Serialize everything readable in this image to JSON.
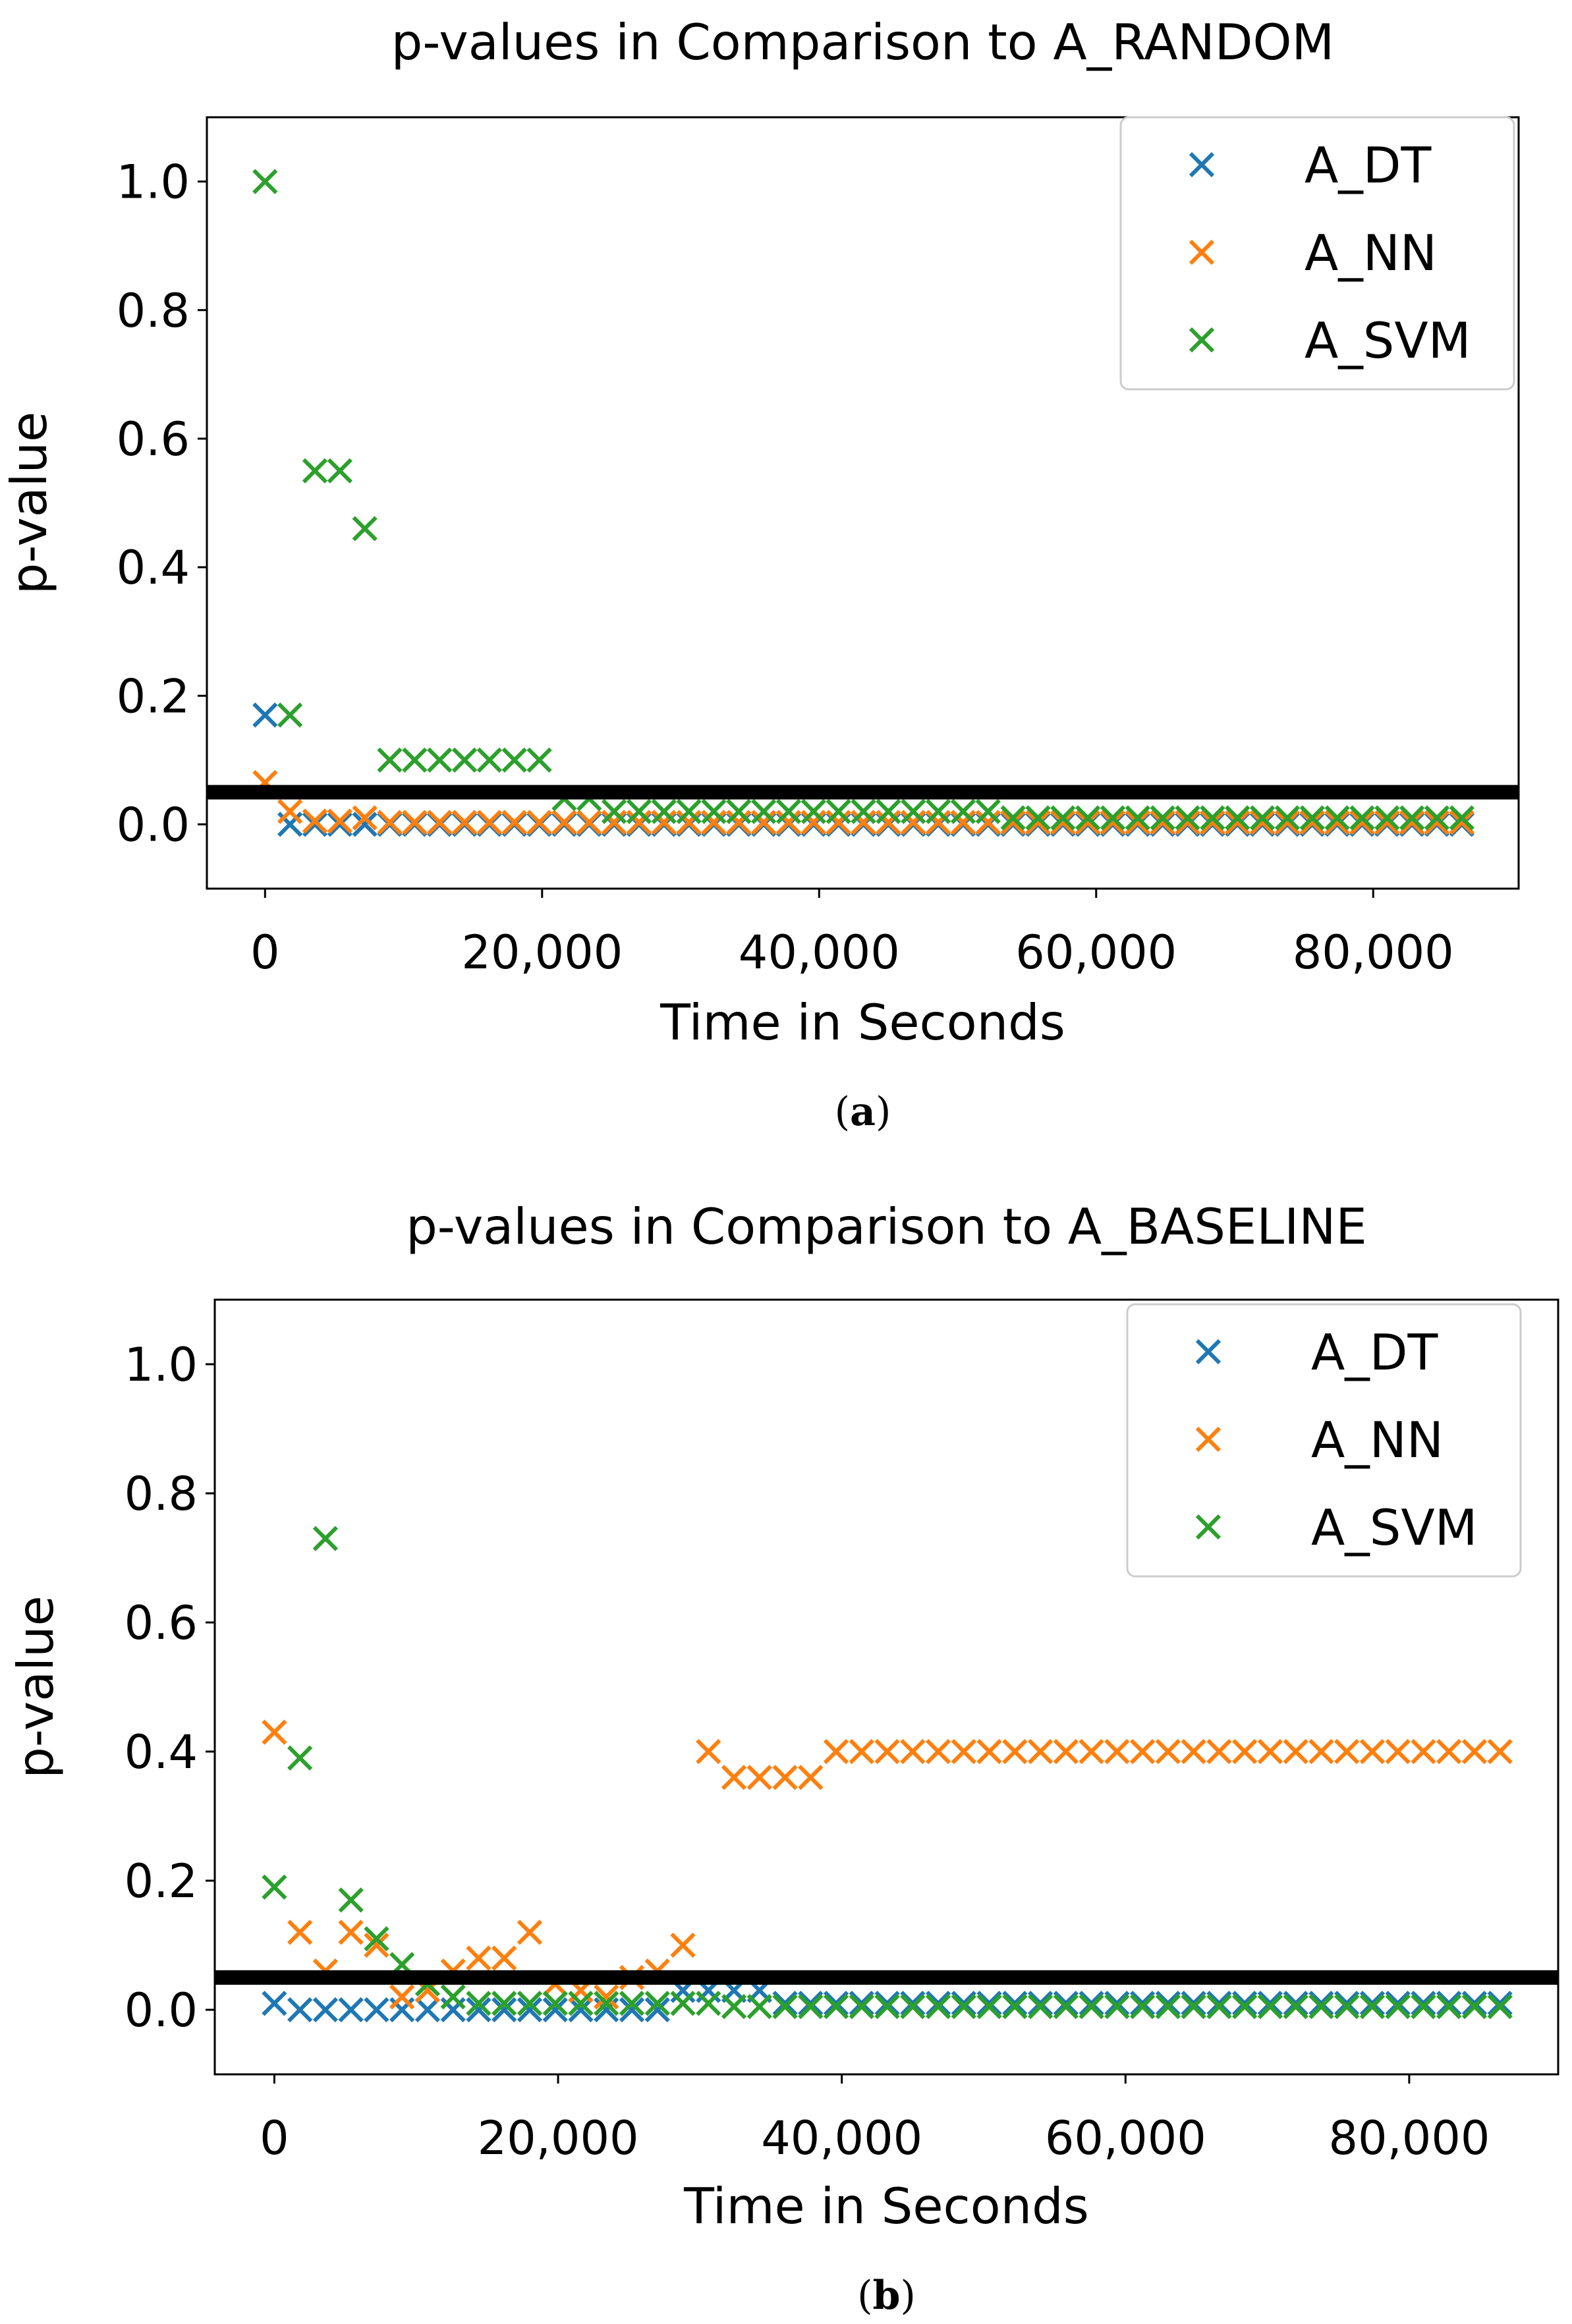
{
  "colors": {
    "A_DT": "#1f77b4",
    "A_NN": "#ff7f0e",
    "A_SVM": "#2ca02c",
    "threshold": "#000000"
  },
  "chart_data": [
    {
      "type": "scatter",
      "title": "p-values in Comparison to A_RANDOM",
      "xlabel": "Time in Seconds",
      "ylabel": "p-value",
      "xlim": [
        -4200,
        90500
      ],
      "ylim": [
        -0.1,
        1.1
      ],
      "xticks": [
        0,
        20000,
        40000,
        60000,
        80000
      ],
      "xtick_labels": [
        "0",
        "20,000",
        "40,000",
        "60,000",
        "80,000"
      ],
      "yticks": [
        0.0,
        0.2,
        0.4,
        0.6,
        0.8,
        1.0
      ],
      "ytick_labels": [
        "0.0",
        "0.2",
        "0.4",
        "0.6",
        "0.8",
        "1.0"
      ],
      "threshold": 0.05,
      "legend_position": "top-right",
      "caption_prefix": "(",
      "caption_letter": "a",
      "caption_suffix": ")",
      "series": [
        {
          "name": "A_DT",
          "x": [
            0,
            1800,
            3600,
            5400,
            7200
          ],
          "y": [
            0.17,
            0.0,
            0.0,
            0.0,
            0.0
          ],
          "tail_x_start": 9000,
          "tail_step": 1800,
          "tail_count": 44,
          "tail_y": 0.0
        },
        {
          "name": "A_NN",
          "x": [
            0,
            1800,
            3600,
            5400,
            7200
          ],
          "y": [
            0.065,
            0.02,
            0.005,
            0.005,
            0.01
          ],
          "tail_x_start": 9000,
          "tail_step": 1800,
          "tail_count": 44,
          "tail_y": 0.003
        },
        {
          "name": "A_SVM",
          "x": [
            0,
            1800,
            3600,
            5400,
            7200,
            9000,
            10800,
            12600,
            14400,
            16200,
            18000,
            19800,
            21600,
            23400,
            25200,
            27000,
            28800,
            30600,
            32400,
            34200,
            36000,
            37800,
            39600,
            41400,
            43200,
            45000,
            46800,
            48600,
            50400,
            52200
          ],
          "y": [
            1.0,
            0.17,
            0.55,
            0.55,
            0.46,
            0.1,
            0.1,
            0.1,
            0.1,
            0.1,
            0.1,
            0.1,
            0.04,
            0.04,
            0.02,
            0.02,
            0.02,
            0.02,
            0.02,
            0.02,
            0.02,
            0.02,
            0.02,
            0.02,
            0.02,
            0.02,
            0.02,
            0.02,
            0.02,
            0.02
          ],
          "tail_x_start": 54000,
          "tail_step": 1800,
          "tail_count": 19,
          "tail_y": 0.01
        }
      ]
    },
    {
      "type": "scatter",
      "title": "p-values in Comparison to A_BASELINE",
      "xlabel": "Time in Seconds",
      "ylabel": "p-value",
      "xlim": [
        -4200,
        90500
      ],
      "ylim": [
        -0.1,
        1.1
      ],
      "xticks": [
        0,
        20000,
        40000,
        60000,
        80000
      ],
      "xtick_labels": [
        "0",
        "20,000",
        "40,000",
        "60,000",
        "80,000"
      ],
      "yticks": [
        0.0,
        0.2,
        0.4,
        0.6,
        0.8,
        1.0
      ],
      "ytick_labels": [
        "0.0",
        "0.2",
        "0.4",
        "0.6",
        "0.8",
        "1.0"
      ],
      "threshold": 0.05,
      "legend_position": "top-right",
      "caption_prefix": "(",
      "caption_letter": "b",
      "caption_suffix": ")",
      "series": [
        {
          "name": "A_DT",
          "x": [
            0,
            1800,
            3600,
            5400,
            7200,
            9000,
            10800,
            12600,
            14400,
            16200,
            18000,
            19800,
            21600,
            23400,
            25200,
            27000,
            28800,
            30600,
            32400,
            34200
          ],
          "y": [
            0.01,
            0.0,
            0.0,
            0.0,
            0.0,
            0.0,
            0.0,
            0.0,
            0.0,
            0.0,
            0.0,
            0.0,
            0.0,
            0.0,
            0.0,
            0.0,
            0.03,
            0.03,
            0.03,
            0.03
          ],
          "tail_x_start": 36000,
          "tail_step": 1800,
          "tail_count": 29,
          "tail_y": 0.01
        },
        {
          "name": "A_NN",
          "x": [
            0,
            1800,
            3600,
            5400,
            7200,
            9000,
            10800,
            12600,
            14400,
            16200,
            18000,
            19800,
            21600,
            23400,
            25200,
            27000,
            28800,
            30600,
            32400,
            34200,
            36000,
            37800
          ],
          "y": [
            0.43,
            0.12,
            0.06,
            0.12,
            0.1,
            0.02,
            0.03,
            0.06,
            0.08,
            0.08,
            0.12,
            0.04,
            0.03,
            0.02,
            0.05,
            0.06,
            0.1,
            0.4,
            0.36,
            0.36,
            0.36,
            0.36
          ],
          "tail_x_start": 39600,
          "tail_step": 1800,
          "tail_count": 27,
          "tail_y": 0.4
        },
        {
          "name": "A_SVM",
          "x": [
            0,
            1800,
            3600,
            5400,
            7200,
            9000,
            10800,
            12600,
            14400,
            16200,
            18000,
            19800,
            21600,
            23400,
            25200,
            27000,
            28800,
            30600
          ],
          "y": [
            0.19,
            0.39,
            0.73,
            0.17,
            0.11,
            0.07,
            0.04,
            0.02,
            0.01,
            0.01,
            0.01,
            0.01,
            0.01,
            0.01,
            0.01,
            0.01,
            0.01,
            0.01
          ],
          "tail_x_start": 32400,
          "tail_step": 1800,
          "tail_count": 31,
          "tail_y": 0.005
        }
      ]
    }
  ]
}
